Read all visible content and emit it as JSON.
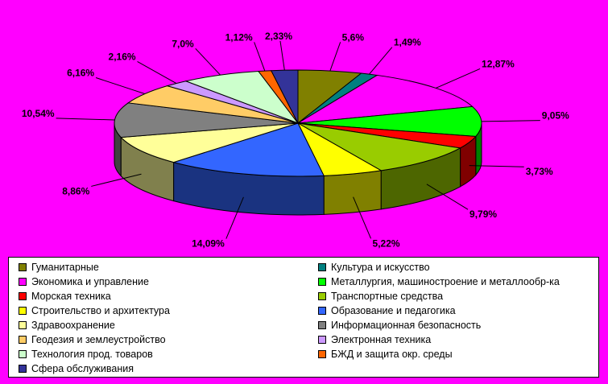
{
  "chart_data": {
    "type": "pie",
    "style": "3d-pie",
    "background_color": "#FF00FF",
    "legend_position": "bottom",
    "slices": [
      {
        "name": "Гуманитарные",
        "value": 5.6,
        "label": "5,6%",
        "color": "#808000"
      },
      {
        "name": "Культура и искусство",
        "value": 1.49,
        "label": "1,49%",
        "color": "#008080"
      },
      {
        "name": "Экономика и управление",
        "value": 12.87,
        "label": "12,87%",
        "color": "#FF00FF"
      },
      {
        "name": "Металлургия, машиностроение и металлообр-ка",
        "value": 9.05,
        "label": "9,05%",
        "color": "#00FF00"
      },
      {
        "name": "Морская техника",
        "value": 3.73,
        "label": "3,73%",
        "color": "#FF0000"
      },
      {
        "name": "Транспортные средства",
        "value": 9.79,
        "label": "9,79%",
        "color": "#99CC00"
      },
      {
        "name": "Строительство и архитектура",
        "value": 5.22,
        "label": "5,22%",
        "color": "#FFFF00"
      },
      {
        "name": "Образование и педагогика",
        "value": 14.09,
        "label": "14,09%",
        "color": "#3366FF"
      },
      {
        "name": "Здравоохранение",
        "value": 8.86,
        "label": "8,86%",
        "color": "#FFFF99"
      },
      {
        "name": "Информационная безопасность",
        "value": 10.54,
        "label": "10,54%",
        "color": "#808080"
      },
      {
        "name": "Геодезия и землеустройство",
        "value": 6.16,
        "label": "6,16%",
        "color": "#FFCC66"
      },
      {
        "name": "Электронная техника",
        "value": 2.16,
        "label": "2,16%",
        "color": "#CC99FF"
      },
      {
        "name": "Технология прод. товаров",
        "value": 7.0,
        "label": "7,0%",
        "color": "#CCFFCC"
      },
      {
        "name": "БЖД и защита окр. среды",
        "value": 1.12,
        "label": "1,12%",
        "color": "#FF6600"
      },
      {
        "name": "Сфера обслуживания",
        "value": 2.33,
        "label": "2,33%",
        "color": "#333399"
      }
    ]
  }
}
